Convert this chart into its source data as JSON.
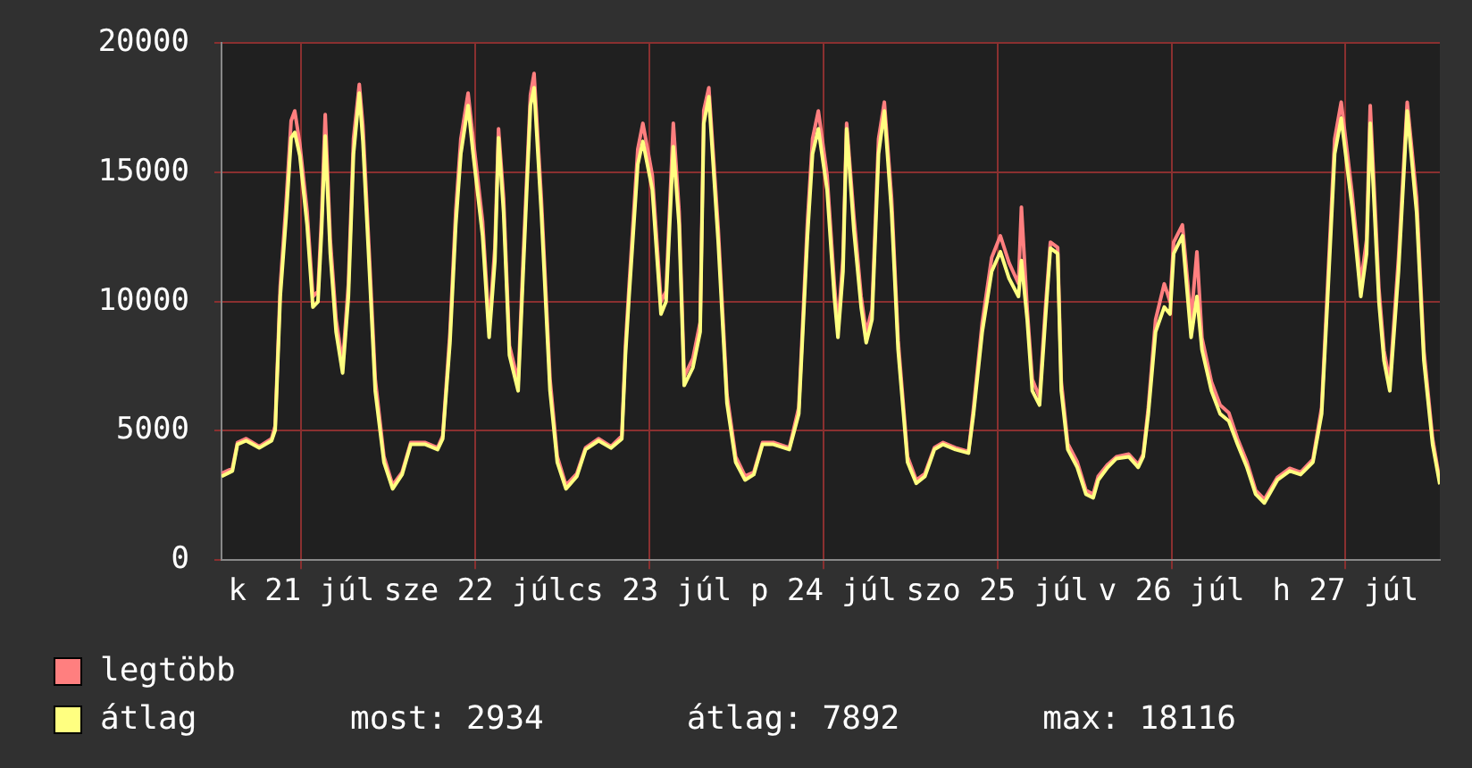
{
  "chart_data": {
    "type": "line",
    "x": [
      "--07-20T13:00",
      "--07-20T14:30",
      "--07-20T15:12",
      "--07-20T16:24",
      "--07-20T18:12",
      "--07-20T19:54",
      "--07-20T20:24",
      "--07-20T21:06",
      "--07-20T21:54",
      "--07-20T22:36",
      "--07-20T23:06",
      "--07-20T23:48",
      "--07-21T00:48",
      "--07-21T01:36",
      "--07-21T02:18",
      "--07-21T02:48",
      "--07-21T03:18",
      "--07-21T04:00",
      "--07-21T04:48",
      "--07-21T05:42",
      "--07-21T06:30",
      "--07-21T07:12",
      "--07-21T08:00",
      "--07-21T08:30",
      "--07-21T09:24",
      "--07-21T10:12",
      "--07-21T11:24",
      "--07-21T12:36",
      "--07-21T13:54",
      "--07-21T15:06",
      "--07-21T17:06",
      "--07-21T18:48",
      "--07-21T19:30",
      "--07-21T20:30",
      "--07-21T21:18",
      "--07-21T22:00",
      "--07-21T23:00",
      "--07-21T23:42",
      "--07-22T01:00",
      "--07-22T01:54",
      "--07-22T02:42",
      "--07-22T03:12",
      "--07-22T03:54",
      "--07-22T04:42",
      "--07-22T05:54",
      "--07-22T06:36",
      "--07-22T07:36",
      "--07-22T08:06",
      "--07-22T09:06",
      "--07-22T10:18",
      "--07-22T11:18",
      "--07-22T12:30",
      "--07-22T14:00",
      "--07-22T15:12",
      "--07-22T17:00",
      "--07-22T18:42",
      "--07-22T20:12",
      "--07-22T20:42",
      "--07-22T21:12",
      "--07-22T22:24",
      "--07-22T23:06",
      "--07-23T00:24",
      "--07-23T01:36",
      "--07-23T02:18",
      "--07-23T03:18",
      "--07-23T04:06",
      "--07-23T04:48",
      "--07-23T06:00",
      "--07-23T07:00",
      "--07-23T07:30",
      "--07-23T08:12",
      "--07-23T09:30",
      "--07-23T10:42",
      "--07-23T11:54",
      "--07-23T13:12",
      "--07-23T14:24",
      "--07-23T15:36",
      "--07-23T17:06",
      "--07-23T19:18",
      "--07-23T20:36",
      "--07-23T21:48",
      "--07-23T22:30",
      "--07-23T23:18",
      "--07-24T00:30",
      "--07-24T01:30",
      "--07-24T02:00",
      "--07-24T02:42",
      "--07-24T03:12",
      "--07-24T04:12",
      "--07-24T05:12",
      "--07-24T05:54",
      "--07-24T06:42",
      "--07-24T07:36",
      "--07-24T08:24",
      "--07-24T09:24",
      "--07-24T10:18",
      "--07-24T11:36",
      "--07-24T12:48",
      "--07-24T14:00",
      "--07-24T15:18",
      "--07-24T16:30",
      "--07-24T18:12",
      "--07-24T20:00",
      "--07-24T20:42",
      "--07-24T21:54",
      "--07-24T23:12",
      "--07-25T00:24",
      "--07-25T01:36",
      "--07-25T02:54",
      "--07-25T03:18",
      "--07-25T04:06",
      "--07-25T04:48",
      "--07-25T05:48",
      "--07-25T06:36",
      "--07-25T07:18",
      "--07-25T08:18",
      "--07-25T08:48",
      "--07-25T09:42",
      "--07-25T11:00",
      "--07-25T12:12",
      "--07-25T13:12",
      "--07-25T13:54",
      "--07-25T15:12",
      "--07-25T16:24",
      "--07-25T18:06",
      "--07-25T19:24",
      "--07-25T20:06",
      "--07-25T20:48",
      "--07-25T21:48",
      "--07-25T23:00",
      "--07-25T23:48",
      "--07-26T00:18",
      "--07-26T01:30",
      "--07-26T02:42",
      "--07-26T03:30",
      "--07-26T04:12",
      "--07-26T05:30",
      "--07-26T06:42",
      "--07-26T07:54",
      "--07-26T09:06",
      "--07-26T10:24",
      "--07-26T11:36",
      "--07-26T12:48",
      "--07-26T14:36",
      "--07-26T16:18",
      "--07-26T17:48",
      "--07-26T19:30",
      "--07-26T20:42",
      "--07-26T21:30",
      "--07-26T22:30",
      "--07-26T23:24",
      "--07-27T00:54",
      "--07-27T02:06",
      "--07-27T02:54",
      "--07-27T03:24",
      "--07-27T04:36",
      "--07-27T05:18",
      "--07-27T06:06",
      "--07-27T07:18",
      "--07-27T08:30",
      "--07-27T09:48",
      "--07-27T10:48",
      "--07-27T12:00",
      "--07-27T13:00"
    ],
    "series": [
      {
        "name": "legtöbb",
        "color": "#ff7f7f",
        "values": [
          3350,
          3550,
          4550,
          4700,
          4400,
          4700,
          5200,
          10600,
          13800,
          17000,
          17380,
          16100,
          13500,
          10200,
          10400,
          13300,
          17240,
          12400,
          9300,
          7600,
          10700,
          16300,
          18410,
          16800,
          11700,
          7000,
          4000,
          2900,
          3400,
          4550,
          4550,
          4350,
          4800,
          8800,
          13500,
          16300,
          18070,
          16300,
          13100,
          9000,
          12100,
          16690,
          14000,
          8300,
          6900,
          11700,
          18000,
          18830,
          14000,
          7000,
          4000,
          2900,
          3350,
          4350,
          4700,
          4400,
          4800,
          8300,
          10600,
          15900,
          16900,
          14900,
          10000,
          10400,
          16900,
          13500,
          7100,
          7800,
          9200,
          17400,
          18280,
          12800,
          6400,
          4000,
          3250,
          3400,
          4550,
          4550,
          4350,
          5900,
          13100,
          16300,
          17380,
          14900,
          10700,
          9000,
          11700,
          16900,
          13300,
          10200,
          8800,
          9700,
          16300,
          17720,
          14000,
          8500,
          4000,
          3100,
          3350,
          4350,
          4550,
          4350,
          4200,
          5900,
          9200,
          11700,
          12550,
          11500,
          10700,
          13660,
          9700,
          7000,
          6300,
          9700,
          12300,
          12100,
          6900,
          4500,
          3800,
          2700,
          2550,
          3250,
          3700,
          4000,
          4100,
          3700,
          4100,
          5900,
          9300,
          10690,
          10000,
          12300,
          12970,
          9300,
          11930,
          8600,
          6900,
          6000,
          5700,
          4700,
          3800,
          2700,
          2350,
          3200,
          3550,
          3400,
          3900,
          5900,
          10500,
          16300,
          17720,
          14200,
          10700,
          12400,
          17590,
          10500,
          8100,
          6900,
          11700,
          17720,
          14000,
          8100,
          4700,
          3050
        ]
      },
      {
        "name": "átlag",
        "color": "#ffff80",
        "values": [
          3240,
          3450,
          4480,
          4620,
          4340,
          4620,
          5030,
          10200,
          13240,
          16340,
          16550,
          15650,
          12970,
          9790,
          10000,
          12760,
          16410,
          11860,
          8830,
          7240,
          10200,
          15720,
          18070,
          16200,
          11170,
          6550,
          3790,
          2760,
          3310,
          4480,
          4480,
          4280,
          4690,
          8410,
          12970,
          15720,
          17590,
          15720,
          12550,
          8620,
          11590,
          16340,
          13450,
          7930,
          6550,
          11170,
          17590,
          18280,
          13450,
          6550,
          3790,
          2760,
          3240,
          4280,
          4620,
          4340,
          4690,
          7930,
          10200,
          15310,
          16200,
          14340,
          9520,
          10000,
          16000,
          12970,
          6760,
          7450,
          8830,
          16900,
          17930,
          12280,
          6070,
          3790,
          3100,
          3310,
          4480,
          4480,
          4280,
          5660,
          12550,
          15720,
          16690,
          14340,
          10200,
          8620,
          11170,
          16690,
          12760,
          9790,
          8410,
          9310,
          15720,
          17380,
          13450,
          8140,
          3790,
          2970,
          3240,
          4280,
          4480,
          4280,
          4140,
          5660,
          8830,
          11170,
          11930,
          10900,
          10200,
          11590,
          9310,
          6550,
          6000,
          9310,
          12070,
          11860,
          6550,
          4280,
          3590,
          2550,
          2410,
          3100,
          3590,
          3930,
          4000,
          3590,
          4000,
          5660,
          8830,
          9790,
          9520,
          11860,
          12550,
          8620,
          10200,
          8140,
          6550,
          5660,
          5380,
          4480,
          3590,
          2550,
          2210,
          3100,
          3450,
          3310,
          3790,
          5660,
          10000,
          15720,
          17100,
          13660,
          10200,
          11860,
          16900,
          10000,
          7720,
          6550,
          11170,
          17380,
          13450,
          7720,
          4480,
          2934
        ]
      }
    ],
    "xlim": [
      "--07-20T13:00",
      "--07-27T13:00"
    ],
    "xticks": [
      {
        "value": "--07-21",
        "label": "k 21 júl"
      },
      {
        "value": "--07-22",
        "label": "sze 22 júl"
      },
      {
        "value": "--07-23",
        "label": "cs 23 júl"
      },
      {
        "value": "--07-24",
        "label": "p 24 júl"
      },
      {
        "value": "--07-25",
        "label": "szo 25 júl"
      },
      {
        "value": "--07-26",
        "label": "v 26 júl"
      },
      {
        "value": "--07-27",
        "label": "h 27 júl"
      }
    ],
    "ylim": [
      0,
      20000
    ],
    "yticks": [
      0,
      5000,
      10000,
      15000,
      20000
    ],
    "grid": true,
    "legend": "bottom left",
    "marker": "none",
    "line_style": "solid",
    "annotations": [
      "most: 2934",
      "átlag: 7892",
      "max: 18116"
    ]
  }
}
